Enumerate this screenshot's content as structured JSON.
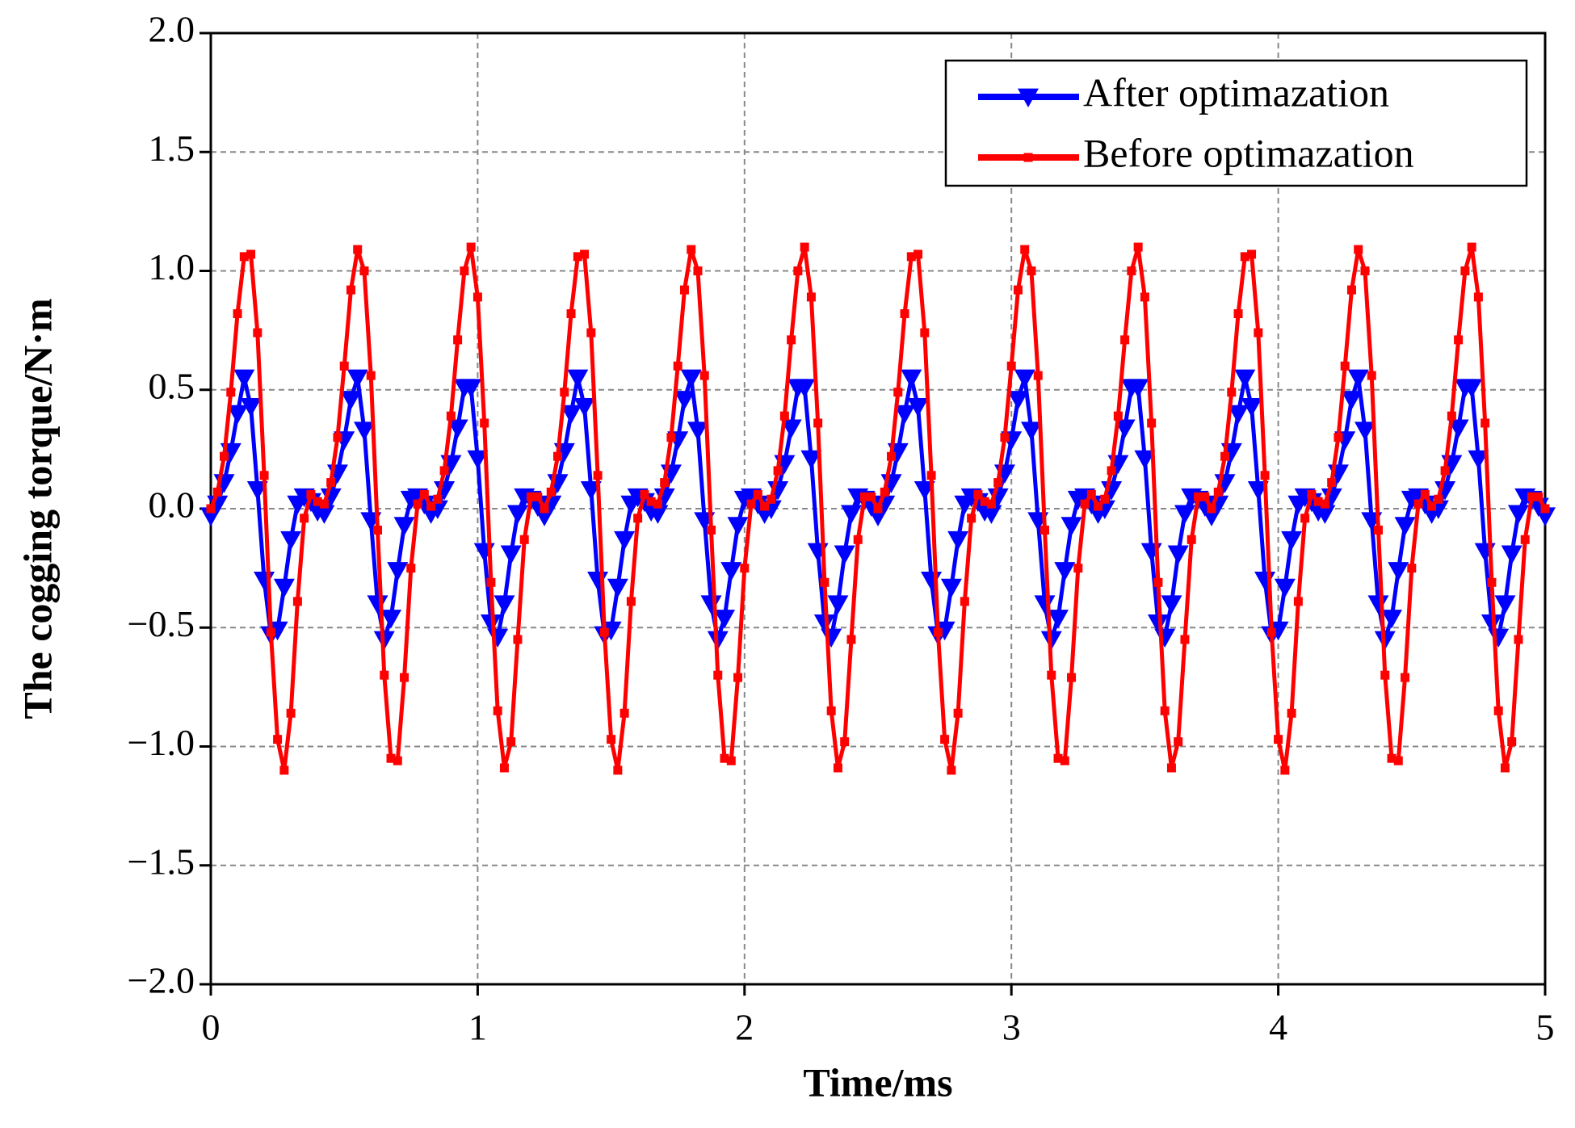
{
  "chart_data": {
    "type": "line",
    "x_label": "Time/ms",
    "y_label": "The cogging torque/N·m",
    "x": [
      0,
      0.025,
      0.05,
      0.075,
      0.1,
      0.125,
      0.15,
      0.175,
      0.2,
      0.225,
      0.25,
      0.275,
      0.3,
      0.325,
      0.35,
      0.375,
      0.4,
      0.425,
      0.45,
      0.475,
      0.5,
      0.525,
      0.55,
      0.575,
      0.6,
      0.625,
      0.65,
      0.675,
      0.7,
      0.725,
      0.75,
      0.775,
      0.8,
      0.825,
      0.85,
      0.875,
      0.9,
      0.925,
      0.95,
      0.975,
      1,
      1.025,
      1.05,
      1.075,
      1.1,
      1.125,
      1.15,
      1.175,
      1.2,
      1.225,
      1.25,
      1.275,
      1.3,
      1.325,
      1.35,
      1.375,
      1.4,
      1.425,
      1.45,
      1.475,
      1.5,
      1.525,
      1.55,
      1.575,
      1.6,
      1.625,
      1.65,
      1.675,
      1.7,
      1.725,
      1.75,
      1.775,
      1.8,
      1.825,
      1.85,
      1.875,
      1.9,
      1.925,
      1.95,
      1.975,
      2,
      2.025,
      2.05,
      2.075,
      2.1,
      2.125,
      2.15,
      2.175,
      2.2,
      2.225,
      2.25,
      2.275,
      2.3,
      2.325,
      2.35,
      2.375,
      2.4,
      2.425,
      2.45,
      2.475,
      2.5,
      2.525,
      2.55,
      2.575,
      2.6,
      2.625,
      2.65,
      2.675,
      2.7,
      2.725,
      2.75,
      2.775,
      2.8,
      2.825,
      2.85,
      2.875,
      2.9,
      2.925,
      2.95,
      2.975,
      3,
      3.025,
      3.05,
      3.075,
      3.1,
      3.125,
      3.15,
      3.175,
      3.2,
      3.225,
      3.25,
      3.275,
      3.3,
      3.325,
      3.35,
      3.375,
      3.4,
      3.425,
      3.45,
      3.475,
      3.5,
      3.525,
      3.55,
      3.575,
      3.6,
      3.625,
      3.65,
      3.675,
      3.7,
      3.725,
      3.75,
      3.775,
      3.8,
      3.825,
      3.85,
      3.875,
      3.9,
      3.925,
      3.95,
      3.975,
      4,
      4.025,
      4.05,
      4.075,
      4.1,
      4.125,
      4.15,
      4.175,
      4.2,
      4.225,
      4.25,
      4.275,
      4.3,
      4.325,
      4.35,
      4.375,
      4.4,
      4.425,
      4.45,
      4.475,
      4.5,
      4.525,
      4.55,
      4.575,
      4.6,
      4.625,
      4.65,
      4.675,
      4.7,
      4.725,
      4.75,
      4.775,
      4.8,
      4.825,
      4.85,
      4.875,
      4.9,
      4.925,
      4.95,
      4.975,
      5
    ],
    "series": [
      {
        "name": "After optimazation",
        "color": "#0000ff",
        "marker": "triangle-down",
        "values": [
          -0.03,
          0.02,
          0.11,
          0.24,
          0.4,
          0.55,
          0.43,
          0.08,
          -0.3,
          -0.53,
          -0.51,
          -0.33,
          -0.13,
          0.02,
          0.05,
          0.03,
          -0.01,
          -0.02,
          0.05,
          0.15,
          0.29,
          0.46,
          0.55,
          0.33,
          -0.05,
          -0.4,
          -0.55,
          -0.46,
          -0.26,
          -0.07,
          0.04,
          0.05,
          0.02,
          -0.02,
          0.0,
          0.08,
          0.19,
          0.34,
          0.51,
          0.51,
          0.21,
          -0.18,
          -0.48,
          -0.54,
          -0.4,
          -0.19,
          -0.02,
          0.05,
          0.04,
          0.01,
          -0.03,
          0.02,
          0.11,
          0.24,
          0.4,
          0.55,
          0.43,
          0.08,
          -0.3,
          -0.53,
          -0.51,
          -0.33,
          -0.13,
          0.02,
          0.05,
          0.03,
          -0.01,
          -0.02,
          0.05,
          0.15,
          0.29,
          0.46,
          0.55,
          0.33,
          -0.05,
          -0.4,
          -0.55,
          -0.46,
          -0.26,
          -0.07,
          0.04,
          0.05,
          0.02,
          -0.02,
          0.0,
          0.08,
          0.19,
          0.34,
          0.51,
          0.51,
          0.21,
          -0.18,
          -0.48,
          -0.54,
          -0.4,
          -0.19,
          -0.02,
          0.05,
          0.04,
          0.01,
          -0.03,
          0.02,
          0.11,
          0.24,
          0.4,
          0.55,
          0.43,
          0.08,
          -0.3,
          -0.53,
          -0.51,
          -0.33,
          -0.13,
          0.02,
          0.05,
          0.03,
          -0.01,
          -0.02,
          0.05,
          0.15,
          0.29,
          0.46,
          0.55,
          0.33,
          -0.05,
          -0.4,
          -0.55,
          -0.46,
          -0.26,
          -0.07,
          0.04,
          0.05,
          0.02,
          -0.02,
          0.0,
          0.08,
          0.19,
          0.34,
          0.51,
          0.51,
          0.21,
          -0.18,
          -0.48,
          -0.54,
          -0.4,
          -0.19,
          -0.02,
          0.05,
          0.04,
          0.01,
          -0.03,
          0.02,
          0.11,
          0.24,
          0.4,
          0.55,
          0.43,
          0.08,
          -0.3,
          -0.53,
          -0.51,
          -0.33,
          -0.13,
          0.02,
          0.05,
          0.03,
          -0.01,
          -0.02,
          0.05,
          0.15,
          0.29,
          0.46,
          0.55,
          0.33,
          -0.05,
          -0.4,
          -0.55,
          -0.46,
          -0.26,
          -0.07,
          0.04,
          0.05,
          0.02,
          -0.02,
          0.0,
          0.08,
          0.19,
          0.34,
          0.51,
          0.51,
          0.21,
          -0.18,
          -0.48,
          -0.54,
          -0.4,
          -0.19,
          -0.02,
          0.05,
          0.04,
          0.01,
          -0.03
        ]
      },
      {
        "name": "Before optimazation",
        "color": "#ff0000",
        "marker": "square",
        "values": [
          0.0,
          0.07,
          0.22,
          0.49,
          0.82,
          1.06,
          1.07,
          0.74,
          0.14,
          -0.52,
          -0.97,
          -1.1,
          -0.86,
          -0.39,
          -0.04,
          0.06,
          0.03,
          0.02,
          0.11,
          0.3,
          0.6,
          0.92,
          1.09,
          1.0,
          0.56,
          -0.09,
          -0.7,
          -1.05,
          -1.06,
          -0.71,
          -0.25,
          0.02,
          0.06,
          0.01,
          0.04,
          0.16,
          0.39,
          0.71,
          1.0,
          1.1,
          0.89,
          0.36,
          -0.31,
          -0.85,
          -1.09,
          -0.98,
          -0.55,
          -0.13,
          0.05,
          0.05,
          0.0,
          0.07,
          0.22,
          0.49,
          0.82,
          1.06,
          1.07,
          0.74,
          0.14,
          -0.52,
          -0.97,
          -1.1,
          -0.86,
          -0.39,
          -0.04,
          0.06,
          0.03,
          0.02,
          0.11,
          0.3,
          0.6,
          0.92,
          1.09,
          1.0,
          0.56,
          -0.09,
          -0.7,
          -1.05,
          -1.06,
          -0.71,
          -0.25,
          0.02,
          0.06,
          0.01,
          0.04,
          0.16,
          0.39,
          0.71,
          1.0,
          1.1,
          0.89,
          0.36,
          -0.31,
          -0.85,
          -1.09,
          -0.98,
          -0.55,
          -0.13,
          0.05,
          0.05,
          0.0,
          0.07,
          0.22,
          0.49,
          0.82,
          1.06,
          1.07,
          0.74,
          0.14,
          -0.52,
          -0.97,
          -1.1,
          -0.86,
          -0.39,
          -0.04,
          0.06,
          0.03,
          0.02,
          0.11,
          0.3,
          0.6,
          0.92,
          1.09,
          1.0,
          0.56,
          -0.09,
          -0.7,
          -1.05,
          -1.06,
          -0.71,
          -0.25,
          0.02,
          0.06,
          0.01,
          0.04,
          0.16,
          0.39,
          0.71,
          1.0,
          1.1,
          0.89,
          0.36,
          -0.31,
          -0.85,
          -1.09,
          -0.98,
          -0.55,
          -0.13,
          0.05,
          0.05,
          0.0,
          0.07,
          0.22,
          0.49,
          0.82,
          1.06,
          1.07,
          0.74,
          0.14,
          -0.52,
          -0.97,
          -1.1,
          -0.86,
          -0.39,
          -0.04,
          0.06,
          0.03,
          0.02,
          0.11,
          0.3,
          0.6,
          0.92,
          1.09,
          1.0,
          0.56,
          -0.09,
          -0.7,
          -1.05,
          -1.06,
          -0.71,
          -0.25,
          0.02,
          0.06,
          0.01,
          0.04,
          0.16,
          0.39,
          0.71,
          1.0,
          1.1,
          0.89,
          0.36,
          -0.31,
          -0.85,
          -1.09,
          -0.98,
          -0.55,
          -0.13,
          0.05,
          0.05,
          0.0
        ]
      }
    ],
    "xlim": [
      0,
      5
    ],
    "xticks": [
      0,
      1,
      2,
      3,
      4,
      5
    ],
    "ylim": [
      -2,
      2
    ],
    "yticks": [
      {
        "value": -2,
        "label": "−2.0"
      },
      {
        "value": -1.5,
        "label": "−1.5"
      },
      {
        "value": -1,
        "label": "−1.0"
      },
      {
        "value": -0.5,
        "label": "−0.5"
      },
      {
        "value": 0,
        "label": "0.0"
      },
      {
        "value": 0.5,
        "label": "0.5"
      },
      {
        "value": 1,
        "label": "1.0"
      },
      {
        "value": 1.5,
        "label": "1.5"
      },
      {
        "value": 2,
        "label": "2.0"
      }
    ],
    "grid": true,
    "legend": "upper right"
  }
}
